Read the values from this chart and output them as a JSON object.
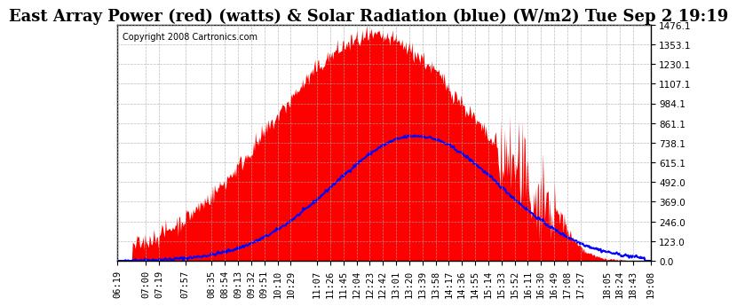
{
  "title": "East Array Power (red) (watts) & Solar Radiation (blue) (W/m2) Tue Sep 2 19:19",
  "copyright_text": "Copyright 2008 Cartronics.com",
  "background_color": "#ffffff",
  "plot_bg_color": "#ffffff",
  "grid_color": "#aaaaaa",
  "y_min": 0.0,
  "y_max": 1476.1,
  "y_ticks": [
    0.0,
    123.0,
    246.0,
    369.0,
    492.0,
    615.1,
    738.1,
    861.1,
    984.1,
    1107.1,
    1230.1,
    1353.1,
    1476.1
  ],
  "x_labels": [
    "06:19",
    "07:00",
    "07:19",
    "07:57",
    "08:35",
    "08:54",
    "09:13",
    "09:32",
    "09:51",
    "10:10",
    "10:29",
    "11:07",
    "11:26",
    "11:45",
    "12:04",
    "12:23",
    "12:42",
    "13:01",
    "13:20",
    "13:39",
    "13:58",
    "14:17",
    "14:36",
    "14:55",
    "15:14",
    "15:33",
    "15:52",
    "16:11",
    "16:30",
    "16:49",
    "17:08",
    "17:27",
    "18:05",
    "18:24",
    "18:43",
    "19:08"
  ],
  "red_fill_color": "#ff0000",
  "blue_line_color": "#0000ff",
  "title_fontsize": 13,
  "tick_fontsize": 7.5,
  "copyright_fontsize": 7
}
